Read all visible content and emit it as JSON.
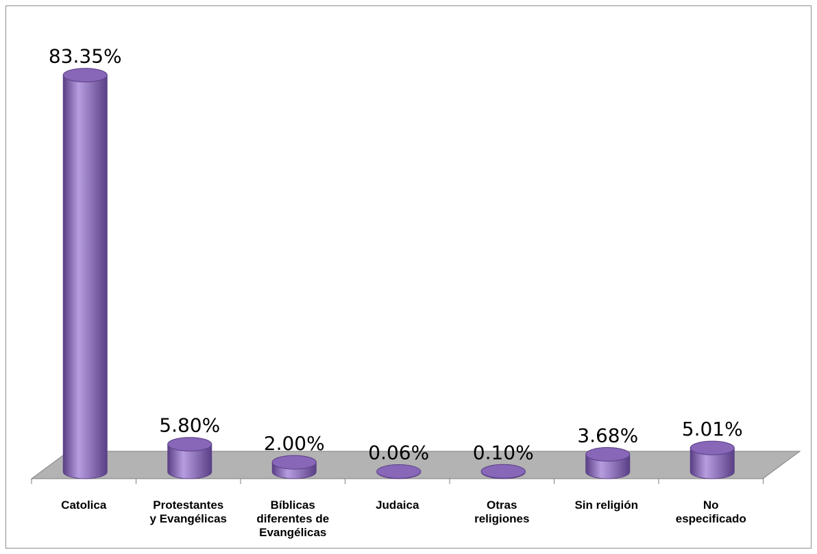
{
  "chart_data": {
    "type": "bar",
    "categories": [
      [
        "Catolica"
      ],
      [
        "Protestantes",
        "y Evangélicas"
      ],
      [
        "Bíblicas",
        "diferentes de",
        "Evangélicas"
      ],
      [
        "Judaica"
      ],
      [
        "Otras",
        "religiones"
      ],
      [
        "Sin religión"
      ],
      [
        "No",
        "especificado"
      ]
    ],
    "values": [
      83.35,
      5.8,
      2.0,
      0.06,
      0.1,
      3.68,
      5.01
    ],
    "value_labels": [
      "83.35%",
      "5.80%",
      "2.00%",
      "0.06%",
      "0.10%",
      "3.68%",
      "5.01%"
    ],
    "bar_style": "3d-cylinder",
    "grid": false,
    "legend": "none",
    "colors": {
      "bar": "#8866b8",
      "bar_light": "#b79de0",
      "bar_dark": "#5a3f86",
      "floor": "#b3b3b3",
      "axis": "#7f7f7f"
    }
  }
}
